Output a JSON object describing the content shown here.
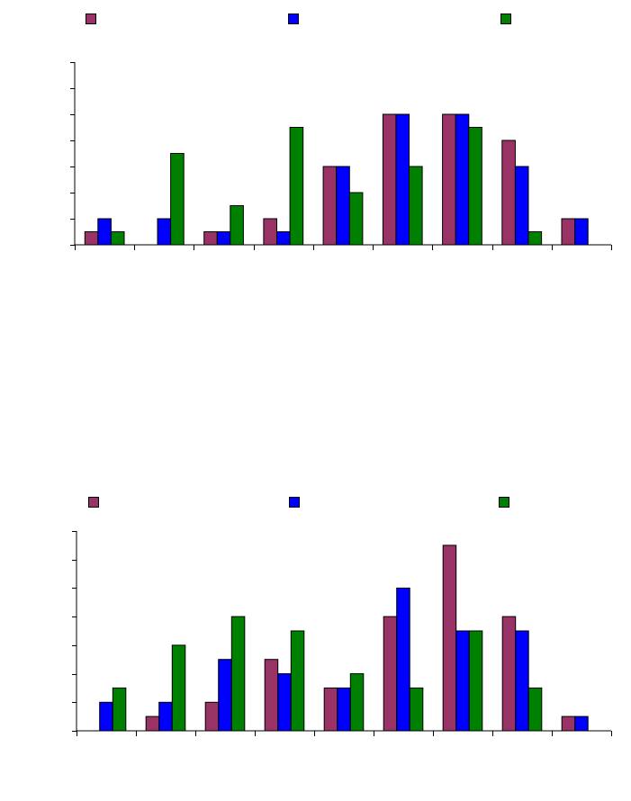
{
  "chart_data": [
    {
      "type": "bar",
      "categories": [
        "",
        "",
        "",
        "",
        "",
        "",
        "",
        "",
        ""
      ],
      "series": [
        {
          "color": "#993366",
          "values": [
            0.5,
            0,
            0.5,
            1,
            3,
            5,
            5,
            4,
            1
          ]
        },
        {
          "color": "#0000ff",
          "values": [
            1,
            1,
            0.5,
            0.5,
            3,
            5,
            5,
            3,
            1
          ]
        },
        {
          "color": "#008000",
          "values": [
            0.5,
            3.5,
            1.5,
            4.5,
            2,
            3,
            4.5,
            0.5,
            0
          ]
        }
      ],
      "ylim": [
        0,
        7
      ],
      "yticks": [
        0,
        1,
        2,
        3,
        4,
        5,
        6,
        7
      ],
      "grid": false,
      "legend": "top"
    },
    {
      "type": "bar",
      "categories": [
        "",
        "",
        "",
        "",
        "",
        "",
        "",
        "",
        ""
      ],
      "series": [
        {
          "color": "#993366",
          "values": [
            0,
            0.5,
            1,
            2.5,
            1.5,
            4,
            6.5,
            4,
            0.5
          ]
        },
        {
          "color": "#0000ff",
          "values": [
            1,
            1,
            2.5,
            2,
            1.5,
            5,
            3.5,
            3.5,
            0.5
          ]
        },
        {
          "color": "#008000",
          "values": [
            1.5,
            3,
            4,
            3.5,
            2,
            1.5,
            3.5,
            1.5,
            0
          ]
        }
      ],
      "ylim": [
        0,
        7
      ],
      "yticks": [
        0,
        1,
        2,
        3,
        4,
        5,
        6,
        7
      ],
      "grid": false,
      "legend": "top"
    }
  ]
}
